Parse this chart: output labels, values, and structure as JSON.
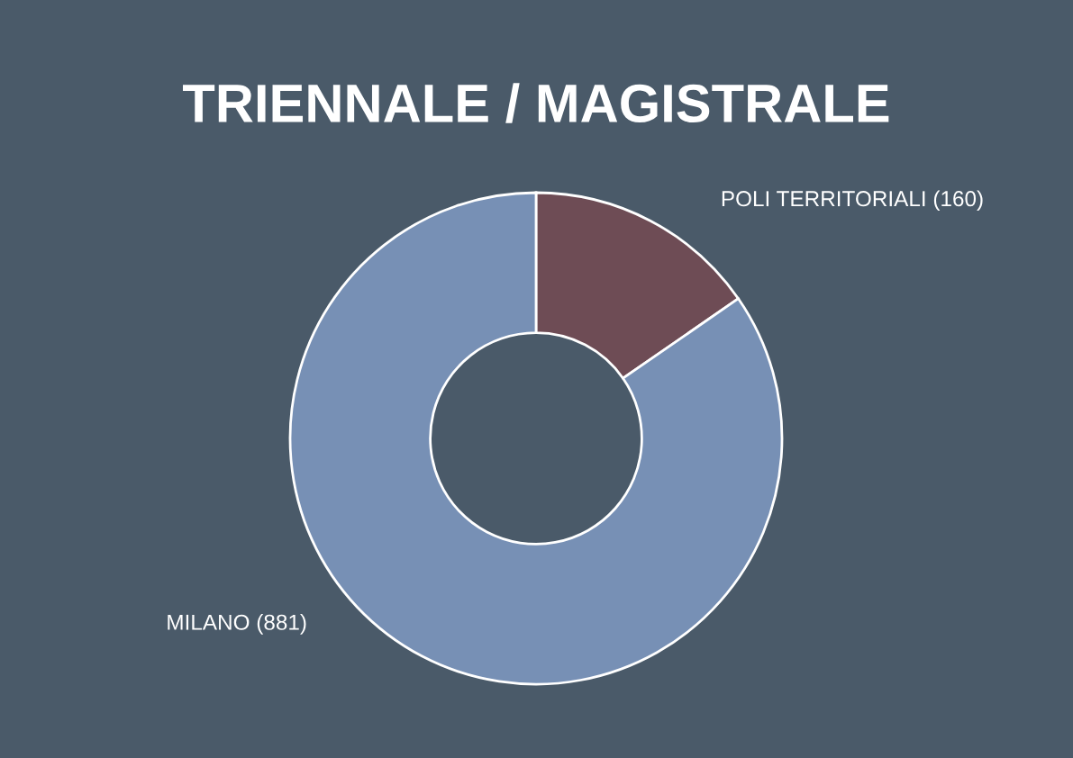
{
  "chart_data": {
    "type": "donut",
    "title": "TRIENNALE / MAGISTRALE",
    "categories": [
      "POLI TERRITORIALI",
      "MILANO"
    ],
    "values": [
      160,
      881
    ],
    "colors": [
      "#6e4c55",
      "#7790b5"
    ],
    "value_labels": [
      "(160)",
      "(881)"
    ]
  }
}
